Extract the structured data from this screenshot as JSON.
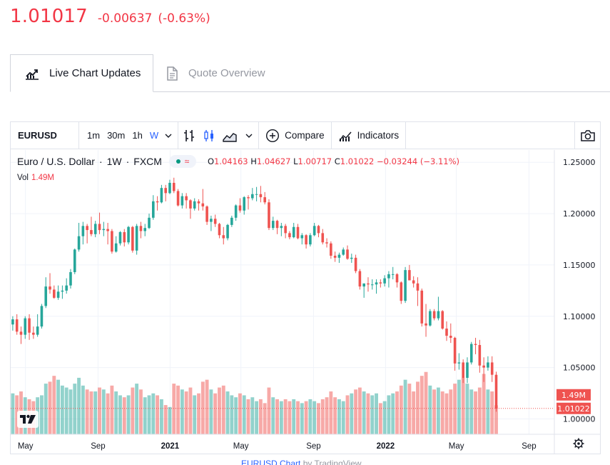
{
  "header": {
    "price": "1.01017",
    "change": "-0.00637",
    "change_pct": "(-0.63%)"
  },
  "tabs": [
    {
      "label": "Live Chart Updates",
      "icon": "chart-line-icon",
      "active": true
    },
    {
      "label": "Quote Overview",
      "icon": "document-icon",
      "active": false
    }
  ],
  "toolbar": {
    "symbol": "EURUSD",
    "intervals": [
      "1m",
      "30m",
      "1h",
      "W"
    ],
    "active_interval": "W",
    "compare_label": "Compare",
    "indicators_label": "Indicators"
  },
  "legend": {
    "name": "Euro / U.S. Dollar",
    "interval": "1W",
    "exchange": "FXCM",
    "o_label": "O",
    "o": "1.04163",
    "h_label": "H",
    "h": "1.04627",
    "l_label": "L",
    "l": "1.00717",
    "c_label": "C",
    "c": "1.01022",
    "chg": "−0.03244",
    "chg_pct": "(−3.11%)",
    "vol_label": "Vol",
    "vol": "1.49M"
  },
  "colors": {
    "up": "#26a69a",
    "down": "#ef5350",
    "accent": "#2962ff",
    "price_red": "#f23645"
  },
  "attribution": {
    "symbol": "EURUSD Chart",
    "by": "by TradingView"
  },
  "chart_data": {
    "type": "candlestick",
    "title": "Euro / U.S. Dollar · 1W · FXCM",
    "ylim": [
      0.985,
      1.262
    ],
    "y_ticks": [
      "1.25000",
      "1.20000",
      "1.15000",
      "1.10000",
      "1.05000",
      "1.00000"
    ],
    "y_tick_values": [
      1.25,
      1.2,
      1.15,
      1.1,
      1.05,
      1.0
    ],
    "x_ticks": [
      "May",
      "Sep",
      "2021",
      "May",
      "Sep",
      "2022",
      "May",
      "Sep"
    ],
    "x_tick_dates": [
      "2020-05-01",
      "2020-09-01",
      "2021-01-01",
      "2021-05-01",
      "2021-09-01",
      "2022-01-01",
      "2022-05-01",
      "2022-09-01"
    ],
    "x_range": [
      "2020-04-06",
      "2022-10-14"
    ],
    "bold_x_ticks": [
      "2021",
      "2022"
    ],
    "last_price": "1.01022",
    "last_price_value": 1.01022,
    "last_volume": "1.49M",
    "volume_max": 3.3,
    "candles": [
      {
        "t": "2020-04-06",
        "o": 1.092,
        "h": 1.1,
        "l": 1.086,
        "c": 1.097,
        "v": 2.1
      },
      {
        "t": "2020-04-13",
        "o": 1.097,
        "h": 1.102,
        "l": 1.082,
        "c": 1.085,
        "v": 2.0
      },
      {
        "t": "2020-04-20",
        "o": 1.085,
        "h": 1.09,
        "l": 1.073,
        "c": 1.082,
        "v": 2.2
      },
      {
        "t": "2020-04-27",
        "o": 1.082,
        "h": 1.1,
        "l": 1.078,
        "c": 1.098,
        "v": 1.9
      },
      {
        "t": "2020-05-04",
        "o": 1.098,
        "h": 1.102,
        "l": 1.077,
        "c": 1.084,
        "v": 1.8
      },
      {
        "t": "2020-05-11",
        "o": 1.084,
        "h": 1.09,
        "l": 1.078,
        "c": 1.082,
        "v": 1.7
      },
      {
        "t": "2020-05-18",
        "o": 1.082,
        "h": 1.102,
        "l": 1.08,
        "c": 1.09,
        "v": 1.9
      },
      {
        "t": "2020-05-25",
        "o": 1.09,
        "h": 1.112,
        "l": 1.088,
        "c": 1.11,
        "v": 2.0
      },
      {
        "t": "2020-06-01",
        "o": 1.11,
        "h": 1.138,
        "l": 1.108,
        "c": 1.129,
        "v": 2.6
      },
      {
        "t": "2020-06-08",
        "o": 1.129,
        "h": 1.142,
        "l": 1.122,
        "c": 1.126,
        "v": 2.7
      },
      {
        "t": "2020-06-15",
        "o": 1.126,
        "h": 1.13,
        "l": 1.117,
        "c": 1.118,
        "v": 3.0
      },
      {
        "t": "2020-06-22",
        "o": 1.118,
        "h": 1.13,
        "l": 1.116,
        "c": 1.124,
        "v": 2.8
      },
      {
        "t": "2020-06-29",
        "o": 1.124,
        "h": 1.13,
        "l": 1.117,
        "c": 1.125,
        "v": 2.5
      },
      {
        "t": "2020-07-06",
        "o": 1.125,
        "h": 1.137,
        "l": 1.122,
        "c": 1.13,
        "v": 2.4
      },
      {
        "t": "2020-07-13",
        "o": 1.13,
        "h": 1.146,
        "l": 1.127,
        "c": 1.143,
        "v": 2.3
      },
      {
        "t": "2020-07-20",
        "o": 1.143,
        "h": 1.166,
        "l": 1.141,
        "c": 1.165,
        "v": 2.6
      },
      {
        "t": "2020-07-27",
        "o": 1.165,
        "h": 1.191,
        "l": 1.163,
        "c": 1.178,
        "v": 2.9
      },
      {
        "t": "2020-08-03",
        "o": 1.178,
        "h": 1.192,
        "l": 1.17,
        "c": 1.188,
        "v": 2.5
      },
      {
        "t": "2020-08-10",
        "o": 1.188,
        "h": 1.19,
        "l": 1.171,
        "c": 1.184,
        "v": 2.3
      },
      {
        "t": "2020-08-17",
        "o": 1.184,
        "h": 1.197,
        "l": 1.178,
        "c": 1.18,
        "v": 2.2
      },
      {
        "t": "2020-08-24",
        "o": 1.18,
        "h": 1.193,
        "l": 1.177,
        "c": 1.19,
        "v": 2.2
      },
      {
        "t": "2020-08-31",
        "o": 1.19,
        "h": 1.201,
        "l": 1.18,
        "c": 1.184,
        "v": 2.4
      },
      {
        "t": "2020-09-07",
        "o": 1.184,
        "h": 1.192,
        "l": 1.178,
        "c": 1.185,
        "v": 2.3
      },
      {
        "t": "2020-09-14",
        "o": 1.185,
        "h": 1.191,
        "l": 1.17,
        "c": 1.183,
        "v": 2.1
      },
      {
        "t": "2020-09-21",
        "o": 1.183,
        "h": 1.185,
        "l": 1.161,
        "c": 1.163,
        "v": 2.5
      },
      {
        "t": "2020-09-28",
        "o": 1.163,
        "h": 1.178,
        "l": 1.162,
        "c": 1.171,
        "v": 2.2
      },
      {
        "t": "2020-10-05",
        "o": 1.171,
        "h": 1.183,
        "l": 1.169,
        "c": 1.182,
        "v": 2.0
      },
      {
        "t": "2020-10-12",
        "o": 1.182,
        "h": 1.185,
        "l": 1.168,
        "c": 1.172,
        "v": 1.9
      },
      {
        "t": "2020-10-19",
        "o": 1.172,
        "h": 1.188,
        "l": 1.17,
        "c": 1.187,
        "v": 2.0
      },
      {
        "t": "2020-10-26",
        "o": 1.187,
        "h": 1.188,
        "l": 1.162,
        "c": 1.164,
        "v": 2.4
      },
      {
        "t": "2020-11-02",
        "o": 1.164,
        "h": 1.19,
        "l": 1.16,
        "c": 1.188,
        "v": 2.6
      },
      {
        "t": "2020-11-09",
        "o": 1.188,
        "h": 1.192,
        "l": 1.176,
        "c": 1.183,
        "v": 2.3
      },
      {
        "t": "2020-11-16",
        "o": 1.183,
        "h": 1.19,
        "l": 1.178,
        "c": 1.186,
        "v": 1.9
      },
      {
        "t": "2020-11-23",
        "o": 1.186,
        "h": 1.2,
        "l": 1.185,
        "c": 1.196,
        "v": 2.0
      },
      {
        "t": "2020-11-30",
        "o": 1.196,
        "h": 1.218,
        "l": 1.194,
        "c": 1.212,
        "v": 2.1
      },
      {
        "t": "2020-12-07",
        "o": 1.212,
        "h": 1.217,
        "l": 1.203,
        "c": 1.211,
        "v": 2.0
      },
      {
        "t": "2020-12-14",
        "o": 1.211,
        "h": 1.228,
        "l": 1.21,
        "c": 1.225,
        "v": 1.8
      },
      {
        "t": "2020-12-21",
        "o": 1.225,
        "h": 1.228,
        "l": 1.212,
        "c": 1.22,
        "v": 1.5
      },
      {
        "t": "2020-12-28",
        "o": 1.22,
        "h": 1.233,
        "l": 1.219,
        "c": 1.23,
        "v": 1.4
      },
      {
        "t": "2021-01-04",
        "o": 1.23,
        "h": 1.235,
        "l": 1.22,
        "c": 1.222,
        "v": 2.6
      },
      {
        "t": "2021-01-11",
        "o": 1.222,
        "h": 1.224,
        "l": 1.207,
        "c": 1.208,
        "v": 2.5
      },
      {
        "t": "2021-01-18",
        "o": 1.208,
        "h": 1.22,
        "l": 1.205,
        "c": 1.217,
        "v": 2.3
      },
      {
        "t": "2021-01-25",
        "o": 1.217,
        "h": 1.22,
        "l": 1.205,
        "c": 1.213,
        "v": 2.2
      },
      {
        "t": "2021-02-01",
        "o": 1.213,
        "h": 1.214,
        "l": 1.195,
        "c": 1.205,
        "v": 2.4
      },
      {
        "t": "2021-02-08",
        "o": 1.205,
        "h": 1.215,
        "l": 1.203,
        "c": 1.212,
        "v": 2.0
      },
      {
        "t": "2021-02-15",
        "o": 1.212,
        "h": 1.214,
        "l": 1.203,
        "c": 1.21,
        "v": 2.1
      },
      {
        "t": "2021-02-22",
        "o": 1.21,
        "h": 1.224,
        "l": 1.203,
        "c": 1.207,
        "v": 2.7
      },
      {
        "t": "2021-03-01",
        "o": 1.207,
        "h": 1.208,
        "l": 1.189,
        "c": 1.192,
        "v": 2.8
      },
      {
        "t": "2021-03-08",
        "o": 1.192,
        "h": 1.198,
        "l": 1.183,
        "c": 1.195,
        "v": 2.3
      },
      {
        "t": "2021-03-15",
        "o": 1.195,
        "h": 1.199,
        "l": 1.187,
        "c": 1.19,
        "v": 2.1
      },
      {
        "t": "2021-03-22",
        "o": 1.19,
        "h": 1.191,
        "l": 1.176,
        "c": 1.179,
        "v": 2.4
      },
      {
        "t": "2021-03-29",
        "o": 1.179,
        "h": 1.187,
        "l": 1.17,
        "c": 1.176,
        "v": 2.5
      },
      {
        "t": "2021-04-05",
        "o": 1.176,
        "h": 1.19,
        "l": 1.174,
        "c": 1.189,
        "v": 2.2
      },
      {
        "t": "2021-04-12",
        "o": 1.189,
        "h": 1.198,
        "l": 1.187,
        "c": 1.196,
        "v": 2.0
      },
      {
        "t": "2021-04-19",
        "o": 1.196,
        "h": 1.209,
        "l": 1.193,
        "c": 1.208,
        "v": 1.9
      },
      {
        "t": "2021-04-26",
        "o": 1.208,
        "h": 1.215,
        "l": 1.201,
        "c": 1.203,
        "v": 2.1
      },
      {
        "t": "2021-05-03",
        "o": 1.203,
        "h": 1.217,
        "l": 1.199,
        "c": 1.216,
        "v": 2.0
      },
      {
        "t": "2021-05-10",
        "o": 1.216,
        "h": 1.218,
        "l": 1.204,
        "c": 1.215,
        "v": 1.8
      },
      {
        "t": "2021-05-17",
        "o": 1.215,
        "h": 1.225,
        "l": 1.213,
        "c": 1.219,
        "v": 1.9
      },
      {
        "t": "2021-05-24",
        "o": 1.219,
        "h": 1.226,
        "l": 1.212,
        "c": 1.219,
        "v": 1.7
      },
      {
        "t": "2021-05-31",
        "o": 1.219,
        "h": 1.227,
        "l": 1.211,
        "c": 1.216,
        "v": 1.8
      },
      {
        "t": "2021-06-07",
        "o": 1.216,
        "h": 1.221,
        "l": 1.209,
        "c": 1.211,
        "v": 1.6
      },
      {
        "t": "2021-06-14",
        "o": 1.211,
        "h": 1.214,
        "l": 1.184,
        "c": 1.186,
        "v": 2.4
      },
      {
        "t": "2021-06-21",
        "o": 1.186,
        "h": 1.197,
        "l": 1.184,
        "c": 1.193,
        "v": 1.9
      },
      {
        "t": "2021-06-28",
        "o": 1.193,
        "h": 1.194,
        "l": 1.18,
        "c": 1.186,
        "v": 1.8
      },
      {
        "t": "2021-07-05",
        "o": 1.186,
        "h": 1.191,
        "l": 1.178,
        "c": 1.188,
        "v": 1.7
      },
      {
        "t": "2021-07-12",
        "o": 1.188,
        "h": 1.19,
        "l": 1.176,
        "c": 1.181,
        "v": 1.8
      },
      {
        "t": "2021-07-19",
        "o": 1.181,
        "h": 1.183,
        "l": 1.175,
        "c": 1.177,
        "v": 1.7
      },
      {
        "t": "2021-07-26",
        "o": 1.177,
        "h": 1.191,
        "l": 1.176,
        "c": 1.187,
        "v": 1.8
      },
      {
        "t": "2021-08-02",
        "o": 1.187,
        "h": 1.19,
        "l": 1.175,
        "c": 1.176,
        "v": 1.7
      },
      {
        "t": "2021-08-09",
        "o": 1.176,
        "h": 1.181,
        "l": 1.17,
        "c": 1.179,
        "v": 1.6
      },
      {
        "t": "2021-08-16",
        "o": 1.179,
        "h": 1.18,
        "l": 1.166,
        "c": 1.17,
        "v": 1.7
      },
      {
        "t": "2021-08-23",
        "o": 1.17,
        "h": 1.181,
        "l": 1.168,
        "c": 1.179,
        "v": 1.8
      },
      {
        "t": "2021-08-30",
        "o": 1.179,
        "h": 1.191,
        "l": 1.178,
        "c": 1.188,
        "v": 1.7
      },
      {
        "t": "2021-09-06",
        "o": 1.188,
        "h": 1.189,
        "l": 1.177,
        "c": 1.181,
        "v": 1.6
      },
      {
        "t": "2021-09-13",
        "o": 1.181,
        "h": 1.185,
        "l": 1.17,
        "c": 1.172,
        "v": 1.8
      },
      {
        "t": "2021-09-20",
        "o": 1.172,
        "h": 1.176,
        "l": 1.167,
        "c": 1.171,
        "v": 1.9
      },
      {
        "t": "2021-09-27",
        "o": 1.171,
        "h": 1.173,
        "l": 1.156,
        "c": 1.159,
        "v": 2.2
      },
      {
        "t": "2021-10-04",
        "o": 1.159,
        "h": 1.163,
        "l": 1.153,
        "c": 1.157,
        "v": 1.9
      },
      {
        "t": "2021-10-11",
        "o": 1.157,
        "h": 1.162,
        "l": 1.152,
        "c": 1.16,
        "v": 1.8
      },
      {
        "t": "2021-10-18",
        "o": 1.16,
        "h": 1.167,
        "l": 1.159,
        "c": 1.165,
        "v": 1.7
      },
      {
        "t": "2021-10-25",
        "o": 1.165,
        "h": 1.169,
        "l": 1.155,
        "c": 1.156,
        "v": 2.0
      },
      {
        "t": "2021-11-01",
        "o": 1.156,
        "h": 1.161,
        "l": 1.152,
        "c": 1.157,
        "v": 2.1
      },
      {
        "t": "2021-11-08",
        "o": 1.157,
        "h": 1.16,
        "l": 1.142,
        "c": 1.144,
        "v": 2.3
      },
      {
        "t": "2021-11-15",
        "o": 1.144,
        "h": 1.146,
        "l": 1.126,
        "c": 1.129,
        "v": 2.4
      },
      {
        "t": "2021-11-22",
        "o": 1.129,
        "h": 1.13,
        "l": 1.118,
        "c": 1.132,
        "v": 2.2
      },
      {
        "t": "2021-11-29",
        "o": 1.132,
        "h": 1.138,
        "l": 1.124,
        "c": 1.131,
        "v": 2.1
      },
      {
        "t": "2021-12-06",
        "o": 1.131,
        "h": 1.136,
        "l": 1.126,
        "c": 1.131,
        "v": 2.0
      },
      {
        "t": "2021-12-13",
        "o": 1.131,
        "h": 1.136,
        "l": 1.122,
        "c": 1.133,
        "v": 2.1
      },
      {
        "t": "2021-12-20",
        "o": 1.133,
        "h": 1.136,
        "l": 1.128,
        "c": 1.132,
        "v": 1.6
      },
      {
        "t": "2021-12-27",
        "o": 1.132,
        "h": 1.14,
        "l": 1.129,
        "c": 1.137,
        "v": 1.7
      },
      {
        "t": "2022-01-03",
        "o": 1.137,
        "h": 1.144,
        "l": 1.128,
        "c": 1.141,
        "v": 2.0
      },
      {
        "t": "2022-01-10",
        "o": 1.141,
        "h": 1.148,
        "l": 1.136,
        "c": 1.141,
        "v": 2.1
      },
      {
        "t": "2022-01-17",
        "o": 1.141,
        "h": 1.142,
        "l": 1.128,
        "c": 1.133,
        "v": 2.2
      },
      {
        "t": "2022-01-24",
        "o": 1.133,
        "h": 1.134,
        "l": 1.112,
        "c": 1.115,
        "v": 2.5
      },
      {
        "t": "2022-01-31",
        "o": 1.115,
        "h": 1.148,
        "l": 1.113,
        "c": 1.145,
        "v": 2.8
      },
      {
        "t": "2022-02-07",
        "o": 1.145,
        "h": 1.15,
        "l": 1.135,
        "c": 1.135,
        "v": 2.6
      },
      {
        "t": "2022-02-14",
        "o": 1.135,
        "h": 1.139,
        "l": 1.128,
        "c": 1.132,
        "v": 2.2
      },
      {
        "t": "2022-02-21",
        "o": 1.132,
        "h": 1.138,
        "l": 1.11,
        "c": 1.125,
        "v": 2.7
      },
      {
        "t": "2022-02-28",
        "o": 1.125,
        "h": 1.127,
        "l": 1.09,
        "c": 1.093,
        "v": 3.0
      },
      {
        "t": "2022-03-07",
        "o": 1.093,
        "h": 1.112,
        "l": 1.08,
        "c": 1.091,
        "v": 3.2
      },
      {
        "t": "2022-03-14",
        "o": 1.091,
        "h": 1.107,
        "l": 1.09,
        "c": 1.105,
        "v": 2.5
      },
      {
        "t": "2022-03-21",
        "o": 1.105,
        "h": 1.107,
        "l": 1.096,
        "c": 1.098,
        "v": 2.3
      },
      {
        "t": "2022-03-28",
        "o": 1.098,
        "h": 1.119,
        "l": 1.096,
        "c": 1.105,
        "v": 2.4
      },
      {
        "t": "2022-04-04",
        "o": 1.105,
        "h": 1.106,
        "l": 1.087,
        "c": 1.088,
        "v": 2.2
      },
      {
        "t": "2022-04-11",
        "o": 1.088,
        "h": 1.095,
        "l": 1.076,
        "c": 1.081,
        "v": 2.1
      },
      {
        "t": "2022-04-18",
        "o": 1.081,
        "h": 1.093,
        "l": 1.074,
        "c": 1.079,
        "v": 2.3
      },
      {
        "t": "2022-04-25",
        "o": 1.079,
        "h": 1.08,
        "l": 1.047,
        "c": 1.054,
        "v": 2.6
      },
      {
        "t": "2022-05-02",
        "o": 1.054,
        "h": 1.064,
        "l": 1.048,
        "c": 1.055,
        "v": 2.8
      },
      {
        "t": "2022-05-09",
        "o": 1.055,
        "h": 1.058,
        "l": 1.035,
        "c": 1.04,
        "v": 2.9
      },
      {
        "t": "2022-05-16",
        "o": 1.04,
        "h": 1.06,
        "l": 1.035,
        "c": 1.055,
        "v": 2.6
      },
      {
        "t": "2022-05-23",
        "o": 1.055,
        "h": 1.075,
        "l": 1.053,
        "c": 1.073,
        "v": 2.3
      },
      {
        "t": "2022-05-30",
        "o": 1.073,
        "h": 1.079,
        "l": 1.063,
        "c": 1.072,
        "v": 2.2
      },
      {
        "t": "2022-06-06",
        "o": 1.072,
        "h": 1.077,
        "l": 1.045,
        "c": 1.052,
        "v": 2.4
      },
      {
        "t": "2022-06-13",
        "o": 1.052,
        "h": 1.06,
        "l": 1.036,
        "c": 1.05,
        "v": 3.1
      },
      {
        "t": "2022-06-20",
        "o": 1.05,
        "h": 1.061,
        "l": 1.047,
        "c": 1.055,
        "v": 2.3
      },
      {
        "t": "2022-06-27",
        "o": 1.055,
        "h": 1.061,
        "l": 1.036,
        "c": 1.043,
        "v": 2.2
      },
      {
        "t": "2022-07-04",
        "o": 1.043,
        "h": 1.046,
        "l": 1.007,
        "c": 1.01,
        "v": 1.49
      }
    ]
  }
}
